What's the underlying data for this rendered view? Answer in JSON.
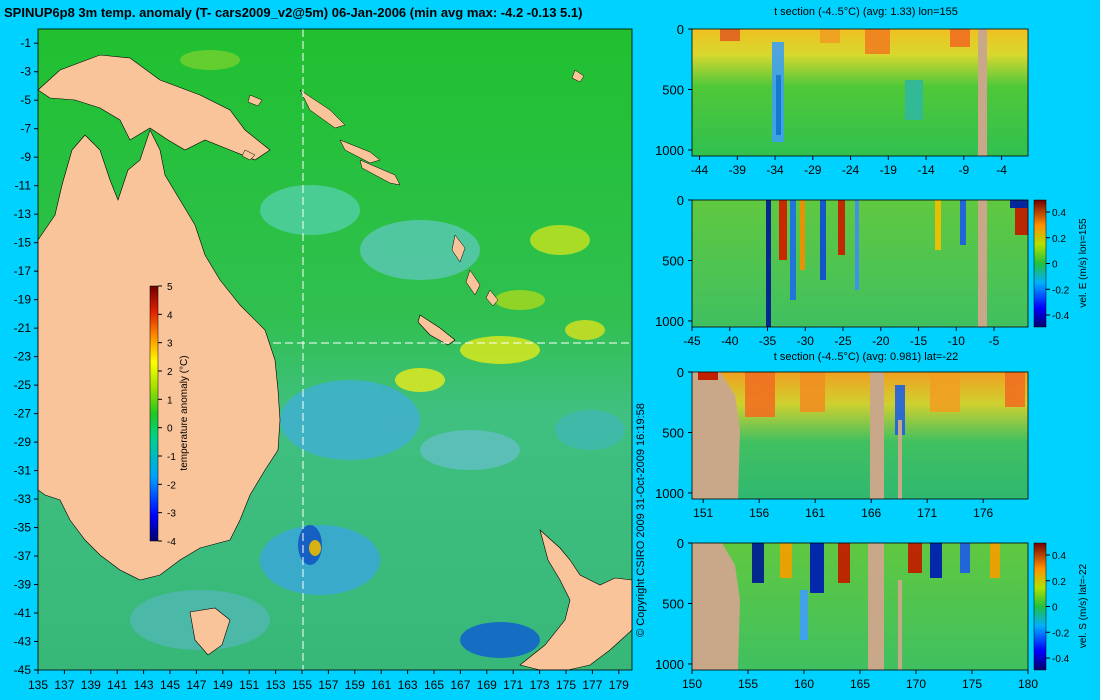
{
  "title": "SPINUP6p8 3m temp. anomaly (T- cars2009_v2@5m) 06-Jan-2006 (min avg max: -4.2 -0.13 5.1)",
  "copyright": "© Copyright CSIRO 2009   31-Oct-2009 16:19:58",
  "colors": {
    "background": "#00d2ff",
    "land": "#f9c49a",
    "section_land": "#c8a888"
  },
  "chart_data": [
    {
      "type": "heatmap",
      "name": "map",
      "x_ticks": [
        135,
        137,
        139,
        141,
        143,
        145,
        147,
        149,
        151,
        153,
        155,
        157,
        159,
        161,
        163,
        165,
        167,
        169,
        171,
        173,
        175,
        177,
        179
      ],
      "y_ticks": [
        -1,
        -3,
        -5,
        -7,
        -9,
        -11,
        -13,
        -15,
        -17,
        -19,
        -21,
        -23,
        -25,
        -27,
        -29,
        -31,
        -33,
        -35,
        -37,
        -39,
        -41,
        -43,
        -45
      ],
      "xlim": [
        135,
        180
      ],
      "ylim": [
        -45,
        0
      ],
      "crosshair": {
        "lon": 155,
        "lat": -22
      },
      "colorbar": {
        "label": "temperature anomaly (°C)",
        "ticks": [
          5,
          4,
          3,
          2,
          1,
          0,
          -1,
          -2,
          -3,
          -4
        ],
        "range": [
          -4,
          5
        ]
      }
    },
    {
      "type": "heatmap",
      "name": "t-section-lon",
      "title": "t section (-4..5°C) (avg: 1.33) lon=155",
      "x_ticks": [
        -44,
        -39,
        -34,
        -29,
        -24,
        -19,
        -14,
        -9,
        -4
      ],
      "y_ticks": [
        0,
        500,
        1000
      ],
      "xlim": [
        -45,
        -0.5
      ],
      "ylim": [
        1050,
        0
      ]
    },
    {
      "type": "heatmap",
      "name": "vel-e-section",
      "x_ticks": [
        -45,
        -40,
        -35,
        -30,
        -25,
        -20,
        -15,
        -10,
        -5
      ],
      "y_ticks": [
        0,
        500,
        1000
      ],
      "xlim": [
        -45,
        -0.5
      ],
      "ylim": [
        1050,
        0
      ],
      "colorbar": {
        "label": "vel. E (m/s) lon=155",
        "ticks": [
          "0.4",
          "0.2",
          "0",
          "-0.2",
          "-0.4"
        ]
      }
    },
    {
      "type": "heatmap",
      "name": "t-section-lat",
      "title": "t section (-4..5°C) (avg: 0.981) lat=-22",
      "x_ticks": [
        151,
        156,
        161,
        166,
        171,
        176
      ],
      "y_ticks": [
        0,
        500,
        1000
      ],
      "xlim": [
        150,
        180
      ],
      "ylim": [
        1050,
        0
      ]
    },
    {
      "type": "heatmap",
      "name": "vel-s-section",
      "x_ticks": [
        150,
        155,
        160,
        165,
        170,
        175,
        180
      ],
      "y_ticks": [
        0,
        500,
        1000
      ],
      "xlim": [
        150,
        180
      ],
      "ylim": [
        1050,
        0
      ],
      "colorbar": {
        "label": "vel. S (m/s) lat=-22",
        "ticks": [
          "0.4",
          "0.2",
          "0",
          "-0.2",
          "-0.4"
        ]
      }
    }
  ]
}
